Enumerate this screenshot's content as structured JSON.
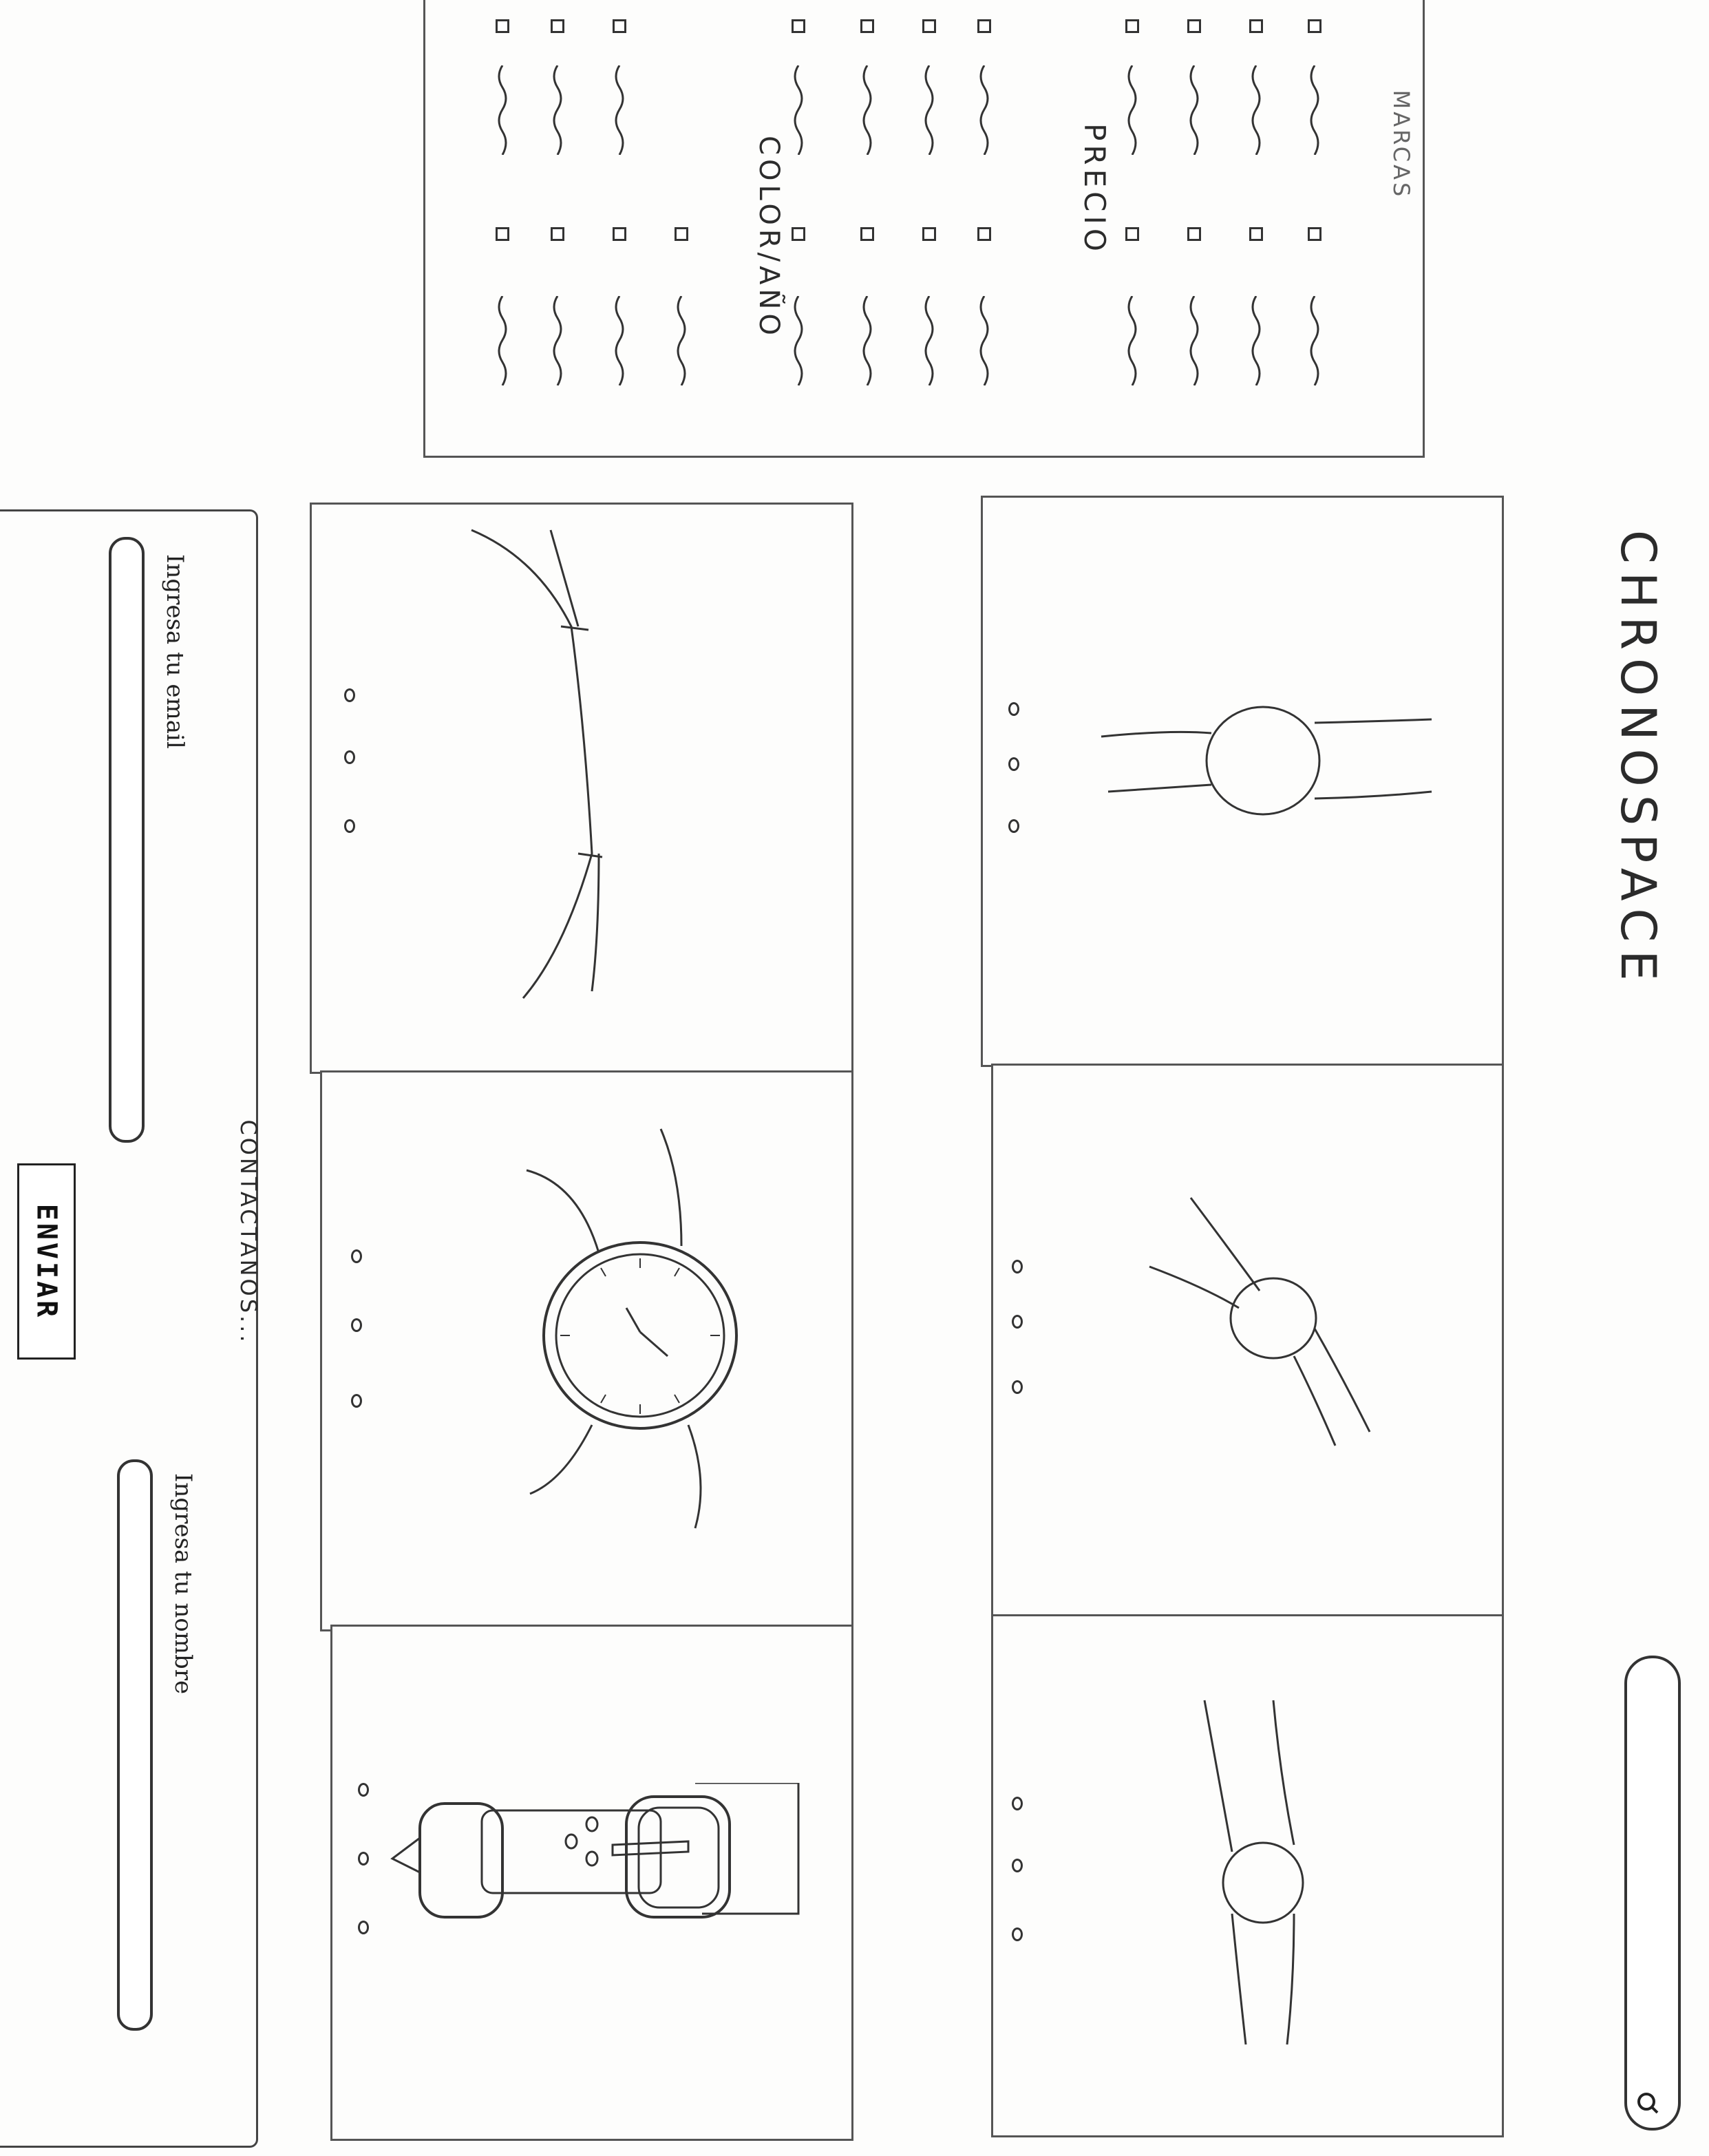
{
  "header": {
    "title": "CHRONOSPACE",
    "search_icon": "search-icon"
  },
  "filters": {
    "brands_heading": "MARCAS",
    "price_heading": "PRECIO",
    "color_year_heading": "COLOR/AÑO"
  },
  "products": {
    "items": [
      {
        "name": "round-watch",
        "image_icon": "watch-icon"
      },
      {
        "name": "tilted-watch",
        "image_icon": "watch-icon"
      },
      {
        "name": "strap-watch",
        "image_icon": "watch-icon"
      },
      {
        "name": "bracelet",
        "image_icon": "bracelet-icon"
      },
      {
        "name": "analog-watch",
        "image_icon": "watch-icon"
      },
      {
        "name": "buckle-strap",
        "image_icon": "strap-icon"
      }
    ]
  },
  "contact": {
    "heading": "CONTACTANOS...",
    "email_placeholder": "Ingresa tu email",
    "name_placeholder": "Ingresa tu nombre",
    "submit_label": "ENVIAR"
  }
}
